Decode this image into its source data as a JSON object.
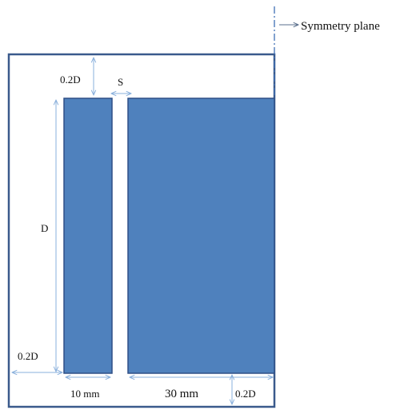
{
  "labels": {
    "symmetry_plane": "Symmetry plane",
    "gap_top": "0.2D",
    "gap_s": "S",
    "height_d": "D",
    "gap_left": "0.2D",
    "width_small": "10 mm",
    "width_large": "30 mm",
    "gap_bottom": "0.2D"
  },
  "colors": {
    "block_fill": "#4f81bd",
    "block_stroke": "#2f4f86",
    "outline": "#3a5a8c",
    "dimension": "#8ab0dc",
    "symmetry_line": "#3f6fb5",
    "text": "#111111"
  }
}
